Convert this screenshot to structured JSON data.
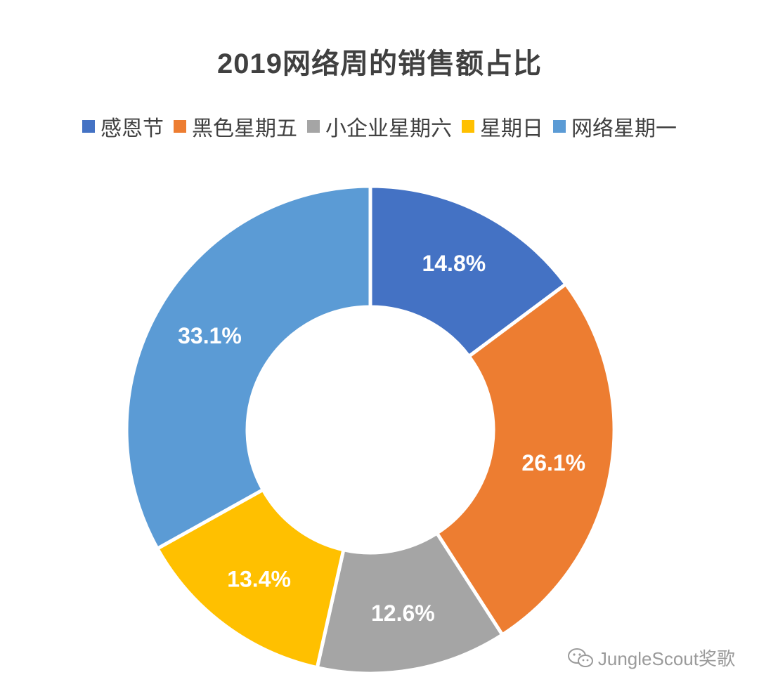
{
  "chart_data": {
    "type": "pie",
    "variant": "donut",
    "title": "2019网络周的销售额占比",
    "categories": [
      "感恩节",
      "黑色星期五",
      "小企业星期六",
      "星期日",
      "网络星期一"
    ],
    "values": [
      14.8,
      26.1,
      12.6,
      13.4,
      33.1
    ],
    "value_labels": [
      "14.8%",
      "26.1%",
      "12.6%",
      "13.4%",
      "33.1%"
    ],
    "unit": "%",
    "colors": [
      "#4472C4",
      "#ED7D31",
      "#A5A5A5",
      "#FFC000",
      "#5B9BD5"
    ],
    "legend_position": "top",
    "start_angle": "12 o'clock",
    "direction": "clockwise"
  },
  "watermark": {
    "icon": "wechat-icon",
    "text": "JungleScout奖歌"
  }
}
